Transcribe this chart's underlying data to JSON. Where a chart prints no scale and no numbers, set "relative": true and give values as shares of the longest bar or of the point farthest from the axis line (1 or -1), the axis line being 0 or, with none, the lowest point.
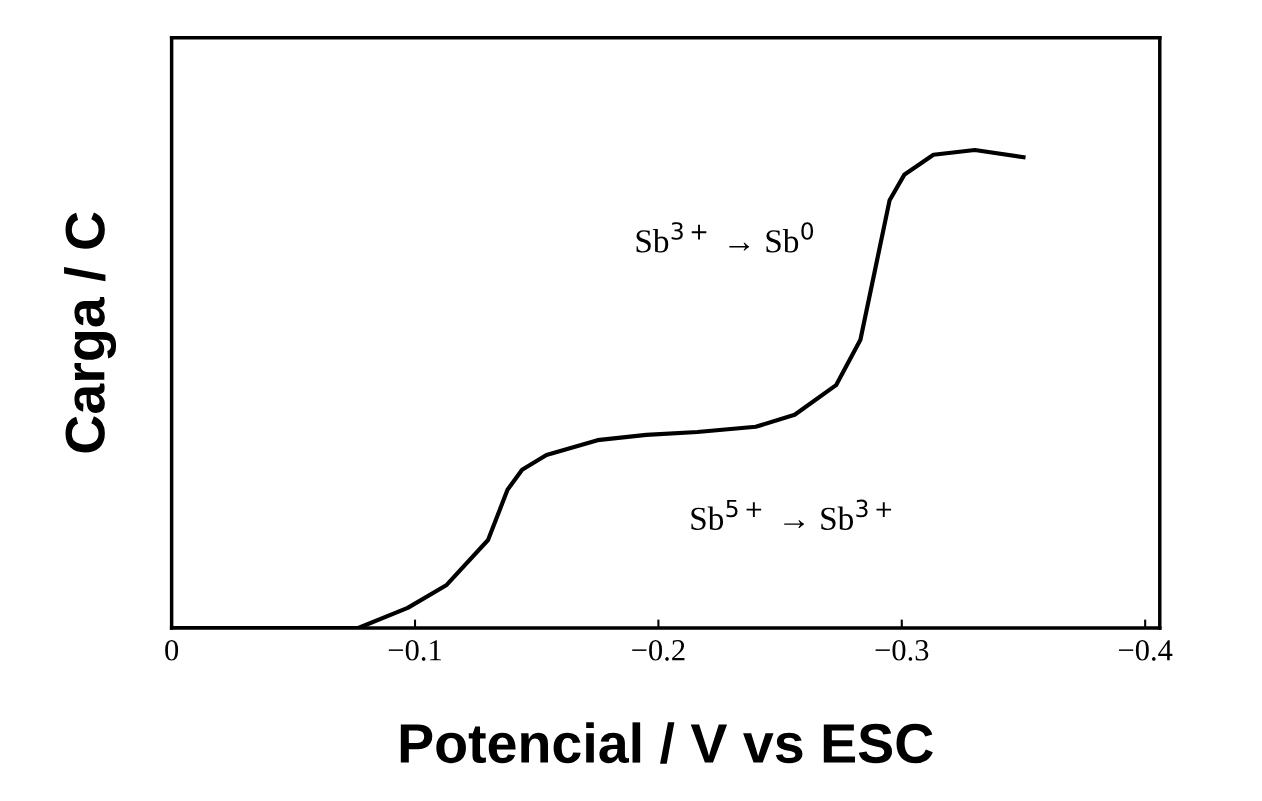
{
  "chart_data": {
    "type": "line",
    "relative": true,
    "xlabel": "Potencial / V vs ESC",
    "ylabel": "Carga / C",
    "x": [
      0,
      -0.0767,
      -0.097,
      -0.113,
      -0.13,
      -0.138,
      -0.144,
      -0.154,
      -0.175,
      -0.195,
      -0.216,
      -0.24,
      -0.256,
      -0.273,
      -0.283,
      -0.289,
      -0.295,
      -0.301,
      -0.313,
      -0.33,
      -0.35
    ],
    "series": [
      {
        "color": "#000000",
        "values": [
          0,
          0,
          0.042,
          0.09,
          0.184,
          0.289,
          0.331,
          0.362,
          0.393,
          0.404,
          0.41,
          0.421,
          0.446,
          0.508,
          0.603,
          0.749,
          0.895,
          0.948,
          0.99,
          1.0,
          0.985
        ]
      }
    ],
    "xlim": [
      0,
      -0.406
    ],
    "xticks": [
      0,
      {
        "value": -0.1,
        "label": "−0.1"
      },
      {
        "value": -0.2,
        "label": "−0.2"
      },
      {
        "value": -0.3,
        "label": "−0.3"
      },
      {
        "value": -0.4,
        "label": "−0.4"
      }
    ],
    "annotations": [
      "Sb$^{3+}$ → Sb$^{0}$",
      "Sb$^{5+}$ → Sb$^{3+}$"
    ],
    "grid": false,
    "legend": false,
    "marker": "none",
    "line_style": "solid"
  }
}
